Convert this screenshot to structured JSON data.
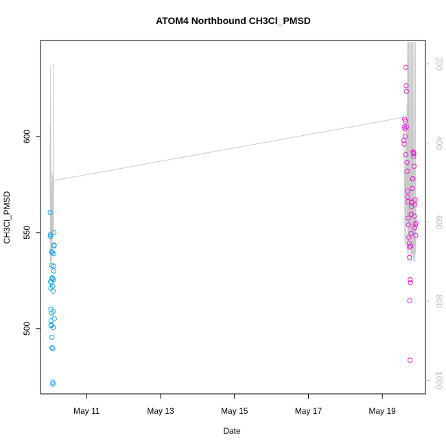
{
  "chart_data": {
    "type": "scatter",
    "title": "ATOM4 Northbound CH3Cl_PMSD",
    "xlabel": "Date",
    "ylabel": "CH3Cl_PMSD",
    "xlim": [
      "2016-05-09T18:00",
      "2016-05-20T04:00"
    ],
    "ylim": [
      466,
      650
    ],
    "x_ticks": [
      {
        "value": "2016-05-11",
        "label": "May 11"
      },
      {
        "value": "2016-05-13",
        "label": "May 13"
      },
      {
        "value": "2016-05-15",
        "label": "May 15"
      },
      {
        "value": "2016-05-17",
        "label": "May 17"
      },
      {
        "value": "2016-05-19",
        "label": "May 19"
      }
    ],
    "y_ticks": [
      500,
      550,
      600
    ],
    "right_axis": {
      "ticks": [
        200,
        400,
        600,
        800,
        1000
      ],
      "color": "#bdbdbd",
      "direction": "reversed",
      "range": [
        141,
        1034
      ]
    },
    "grid": false,
    "series": [
      {
        "color": "#1ba3e8",
        "marker": "open-circle",
        "points": [
          [
            "2016-05-10T00:20",
            560.5
          ],
          [
            "2016-05-10T00:25",
            548
          ],
          [
            "2016-05-10T00:30",
            549
          ],
          [
            "2016-05-10T00:35",
            524.5
          ],
          [
            "2016-05-10T00:40",
            521
          ],
          [
            "2016-05-10T00:45",
            510
          ],
          [
            "2016-05-10T00:50",
            504
          ],
          [
            "2016-05-10T00:55",
            502
          ],
          [
            "2016-05-10T01:00",
            501.5
          ],
          [
            "2016-05-10T01:05",
            524
          ],
          [
            "2016-05-10T01:10",
            540
          ],
          [
            "2016-05-10T01:15",
            533
          ],
          [
            "2016-05-10T01:20",
            508
          ],
          [
            "2016-05-10T01:25",
            495.5
          ],
          [
            "2016-05-10T01:30",
            490
          ],
          [
            "2016-05-10T01:35",
            526.5
          ],
          [
            "2016-05-10T01:40",
            539.5
          ],
          [
            "2016-05-10T01:45",
            526
          ],
          [
            "2016-05-10T01:50",
            522
          ],
          [
            "2016-05-10T01:55",
            489.5
          ],
          [
            "2016-05-10T02:00",
            472
          ],
          [
            "2016-05-10T02:05",
            471
          ],
          [
            "2016-05-10T02:10",
            519.5
          ],
          [
            "2016-05-10T02:15",
            509
          ],
          [
            "2016-05-10T02:20",
            500.5
          ],
          [
            "2016-05-10T02:25",
            525.5
          ],
          [
            "2016-05-10T02:30",
            532.5
          ],
          [
            "2016-05-10T02:35",
            530
          ],
          [
            "2016-05-10T02:40",
            539
          ],
          [
            "2016-05-10T02:45",
            550
          ],
          [
            "2016-05-10T02:50",
            543
          ],
          [
            "2016-05-10T02:55",
            543.5
          ],
          [
            "2016-05-10T03:00",
            505
          ]
        ]
      },
      {
        "color": "#e01fd3",
        "marker": "open-circle",
        "points": [
          [
            "2016-05-19T14:00",
            598
          ],
          [
            "2016-05-19T14:10",
            596
          ],
          [
            "2016-05-19T14:20",
            605
          ],
          [
            "2016-05-19T14:30",
            609
          ],
          [
            "2016-05-19T14:40",
            604
          ],
          [
            "2016-05-19T14:50",
            600
          ],
          [
            "2016-05-19T15:00",
            608
          ],
          [
            "2016-05-19T15:10",
            590.5
          ],
          [
            "2016-05-19T15:20",
            636
          ],
          [
            "2016-05-19T15:30",
            626.5
          ],
          [
            "2016-05-19T15:40",
            623.5
          ],
          [
            "2016-05-19T15:50",
            605
          ],
          [
            "2016-05-19T16:00",
            586.5
          ],
          [
            "2016-05-19T16:10",
            582
          ],
          [
            "2016-05-19T16:20",
            571.5
          ],
          [
            "2016-05-19T16:30",
            568.5
          ],
          [
            "2016-05-19T16:40",
            566
          ],
          [
            "2016-05-19T16:50",
            557.5
          ],
          [
            "2016-05-19T17:00",
            554
          ],
          [
            "2016-05-19T17:10",
            547.5
          ],
          [
            "2016-05-19T17:20",
            544.5
          ],
          [
            "2016-05-19T17:30",
            542.5
          ],
          [
            "2016-05-19T17:40",
            537
          ],
          [
            "2016-05-19T17:50",
            514.5
          ],
          [
            "2016-05-19T18:00",
            483.5
          ],
          [
            "2016-05-19T18:10",
            525.5
          ],
          [
            "2016-05-19T18:20",
            524
          ],
          [
            "2016-05-19T18:30",
            543
          ],
          [
            "2016-05-19T18:40",
            549.5
          ],
          [
            "2016-05-19T18:50",
            559.5
          ],
          [
            "2016-05-19T19:00",
            563.5
          ],
          [
            "2016-05-19T19:10",
            566
          ],
          [
            "2016-05-19T19:20",
            565.5
          ],
          [
            "2016-05-19T19:30",
            573
          ],
          [
            "2016-05-19T19:40",
            578
          ],
          [
            "2016-05-19T19:50",
            578
          ],
          [
            "2016-05-19T20:00",
            592
          ],
          [
            "2016-05-19T20:10",
            591.5
          ],
          [
            "2016-05-19T20:20",
            589.5
          ],
          [
            "2016-05-19T20:30",
            591
          ],
          [
            "2016-05-19T20:40",
            584.5
          ],
          [
            "2016-05-19T20:50",
            558.5
          ],
          [
            "2016-05-19T21:00",
            552.5
          ],
          [
            "2016-05-19T21:10",
            564.5
          ],
          [
            "2016-05-19T21:20",
            567
          ],
          [
            "2016-05-19T21:30",
            554
          ],
          [
            "2016-05-19T21:40",
            548.5
          ],
          [
            "2016-05-19T21:50",
            555
          ]
        ]
      }
    ],
    "line_series": {
      "color": "#c8c8c8",
      "axis": "right",
      "points": [
        [
          "2016-05-10T00:10",
          400
        ],
        [
          "2016-05-10T00:15",
          550
        ],
        [
          "2016-05-10T00:20",
          350
        ],
        [
          "2016-05-10T00:25",
          700
        ],
        [
          "2016-05-10T00:30",
          500
        ],
        [
          "2016-05-10T00:35",
          205
        ],
        [
          "2016-05-10T00:40",
          600
        ],
        [
          "2016-05-10T00:45",
          720
        ],
        [
          "2016-05-10T00:50",
          450
        ],
        [
          "2016-05-10T00:55",
          600
        ],
        [
          "2016-05-10T01:00",
          680
        ],
        [
          "2016-05-10T01:05",
          500
        ],
        [
          "2016-05-10T01:10",
          620
        ],
        [
          "2016-05-10T01:15",
          700
        ],
        [
          "2016-05-10T01:20",
          560
        ],
        [
          "2016-05-10T01:25",
          650
        ],
        [
          "2016-05-10T01:30",
          520
        ],
        [
          "2016-05-10T01:35",
          680
        ],
        [
          "2016-05-10T01:40",
          480
        ],
        [
          "2016-05-10T01:45",
          560
        ],
        [
          "2016-05-10T01:50",
          640
        ],
        [
          "2016-05-10T01:55",
          545
        ],
        [
          "2016-05-10T02:00",
          600
        ],
        [
          "2016-05-10T02:05",
          580
        ],
        [
          "2016-05-10T02:10",
          470
        ],
        [
          "2016-05-10T02:15",
          620
        ],
        [
          "2016-05-10T02:20",
          200
        ],
        [
          "2016-05-10T02:25",
          640
        ],
        [
          "2016-05-10T02:30",
          520
        ],
        [
          "2016-05-10T02:35",
          510
        ],
        [
          "2016-05-10T02:40",
          495
        ],
        [
          "2016-05-19T14:00",
          335
        ],
        [
          "2016-05-19T14:10",
          380
        ],
        [
          "2016-05-19T14:20",
          520
        ],
        [
          "2016-05-19T14:30",
          470
        ],
        [
          "2016-05-19T14:40",
          650
        ],
        [
          "2016-05-19T14:50",
          560
        ],
        [
          "2016-05-19T15:00",
          410
        ],
        [
          "2016-05-19T15:10",
          660
        ],
        [
          "2016-05-19T15:20",
          480
        ],
        [
          "2016-05-19T15:30",
          600
        ],
        [
          "2016-05-19T15:40",
          520
        ],
        [
          "2016-05-19T15:50",
          350
        ],
        [
          "2016-05-19T16:00",
          300
        ],
        [
          "2016-05-19T16:10",
          600
        ],
        [
          "2016-05-19T16:20",
          145
        ],
        [
          "2016-05-19T16:30",
          680
        ],
        [
          "2016-05-19T16:40",
          450
        ],
        [
          "2016-05-19T16:50",
          700
        ],
        [
          "2016-05-19T17:00",
          145
        ],
        [
          "2016-05-19T17:10",
          560
        ],
        [
          "2016-05-19T17:20",
          660
        ],
        [
          "2016-05-19T17:30",
          145
        ],
        [
          "2016-05-19T17:40",
          640
        ],
        [
          "2016-05-19T17:50",
          480
        ],
        [
          "2016-05-19T18:00",
          690
        ],
        [
          "2016-05-19T18:10",
          145
        ],
        [
          "2016-05-19T18:20",
          640
        ],
        [
          "2016-05-19T18:30",
          520
        ],
        [
          "2016-05-19T18:40",
          700
        ],
        [
          "2016-05-19T18:50",
          145
        ],
        [
          "2016-05-19T19:00",
          600
        ],
        [
          "2016-05-19T19:10",
          700
        ],
        [
          "2016-05-19T19:20",
          145
        ],
        [
          "2016-05-19T19:30",
          620
        ],
        [
          "2016-05-19T19:40",
          680
        ],
        [
          "2016-05-19T19:50",
          550
        ],
        [
          "2016-05-19T20:00",
          145
        ],
        [
          "2016-05-19T20:10",
          690
        ],
        [
          "2016-05-19T20:20",
          620
        ],
        [
          "2016-05-19T20:30",
          700
        ],
        [
          "2016-05-19T20:40",
          145
        ],
        [
          "2016-05-19T20:50",
          660
        ],
        [
          "2016-05-19T21:00",
          620
        ],
        [
          "2016-05-19T21:10",
          700
        ],
        [
          "2016-05-19T21:20",
          640
        ],
        [
          "2016-05-19T21:30",
          145
        ],
        [
          "2016-05-19T21:40",
          680
        ],
        [
          "2016-05-19T21:50",
          540
        ]
      ]
    }
  }
}
